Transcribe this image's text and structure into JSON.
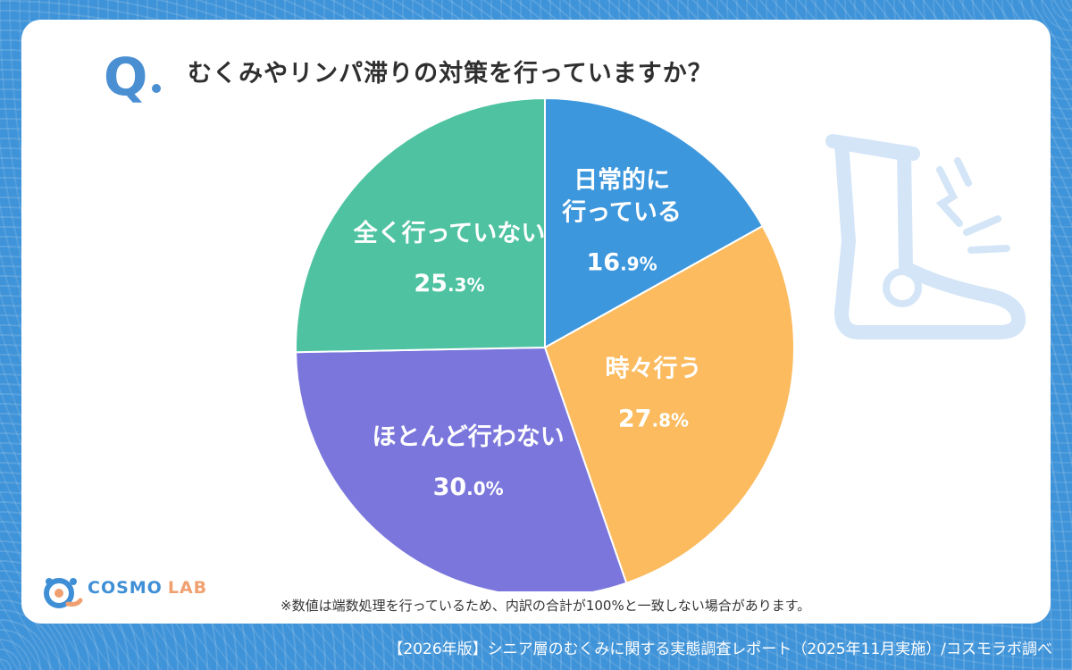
{
  "header": {
    "q_mark": "Q",
    "question": "むくみやリンパ滞りの対策を行っていますか？"
  },
  "chart_data": {
    "type": "pie",
    "title": "むくみやリンパ滞りの対策を行っていますか？",
    "slices": [
      {
        "label_lines": [
          "日常的に",
          "行っている"
        ],
        "value": 16.9,
        "value_main": "16",
        "value_dec": ".9%",
        "color": "#3d97dd"
      },
      {
        "label_lines": [
          "時々行う"
        ],
        "value": 27.8,
        "value_main": "27",
        "value_dec": ".8%",
        "color": "#fbbb5e"
      },
      {
        "label_lines": [
          "ほとんど行わない"
        ],
        "value": 30.0,
        "value_main": "30",
        "value_dec": ".0%",
        "color": "#7a76dc"
      },
      {
        "label_lines": [
          "全く行っていない"
        ],
        "value": 25.3,
        "value_main": "25",
        "value_dec": ".3%",
        "color": "#4fc3a1"
      }
    ]
  },
  "note": "※数値は端数処理を行っているため、内訳の合計が100%と一致しない場合があります。",
  "logo": {
    "cosmo": "COSMO",
    "lab": "LAB"
  },
  "footer": "【2026年版】シニア層のむくみに関する実態調査レポート（2025年11月実施）/コスモラボ調べ",
  "colors": {
    "background": "#3f93d8",
    "accent": "#4b8fd3",
    "text": "#2f2f2f"
  },
  "illustration": {
    "icon": "swollen-leg-icon"
  }
}
